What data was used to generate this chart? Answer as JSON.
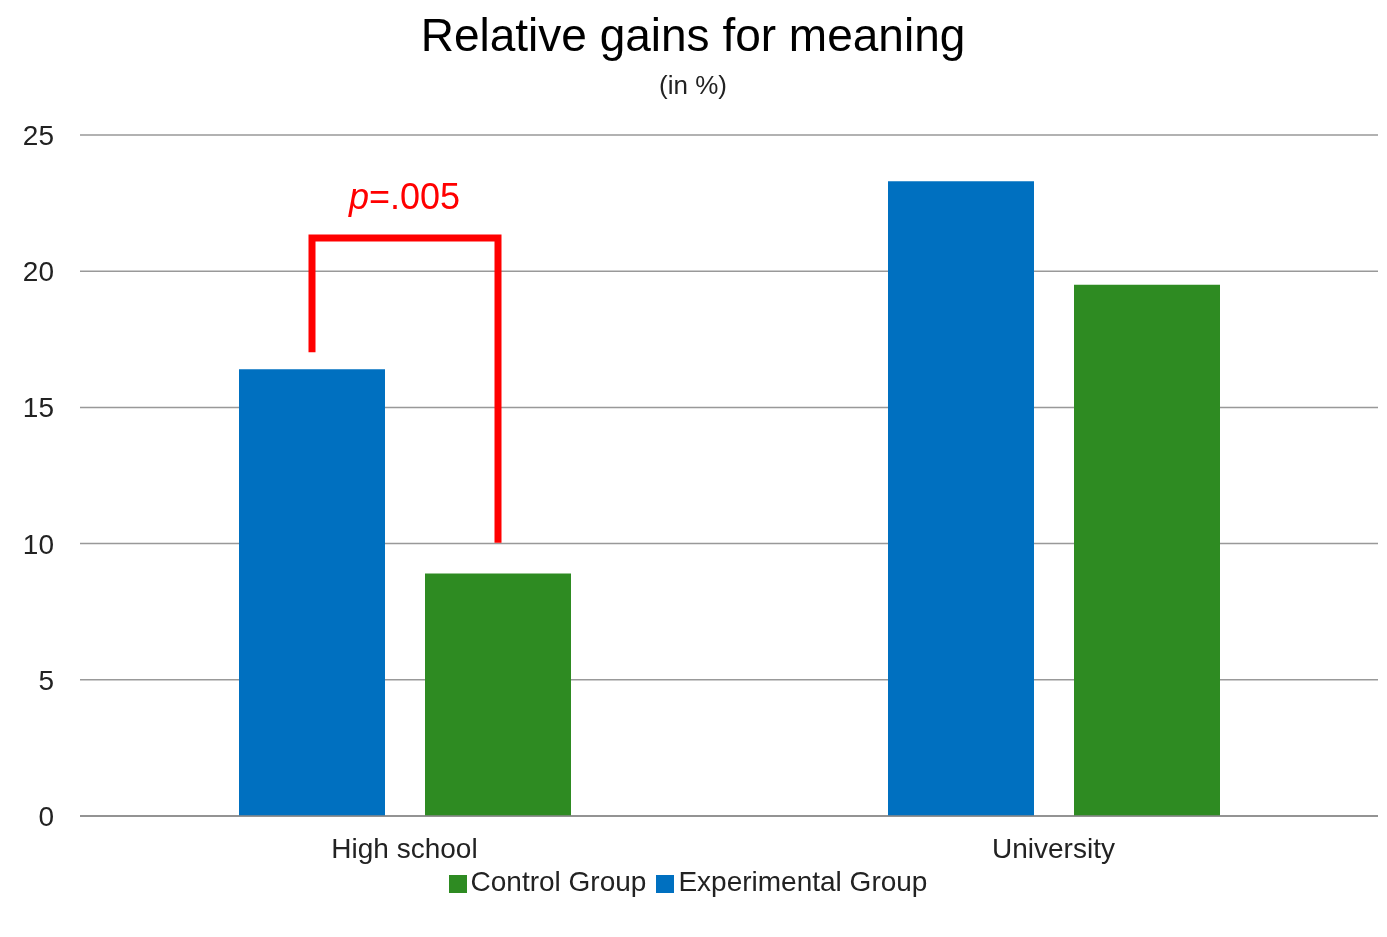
{
  "chart_data": {
    "type": "bar",
    "title": "Relative gains for meaning",
    "subtitle": "(in %)",
    "categories": [
      "High school",
      "University"
    ],
    "series": [
      {
        "name": "Experimental Group",
        "color": "#0070c0",
        "values": [
          16.4,
          23.3
        ]
      },
      {
        "name": "Control Group",
        "color": "#2e8b22",
        "values": [
          8.9,
          19.5
        ]
      }
    ],
    "ylim": [
      0,
      25
    ],
    "yticks": [
      0,
      5,
      10,
      15,
      20,
      25
    ],
    "grid": "y",
    "legend": "bottom",
    "annotations": [
      "p=.005"
    ]
  }
}
